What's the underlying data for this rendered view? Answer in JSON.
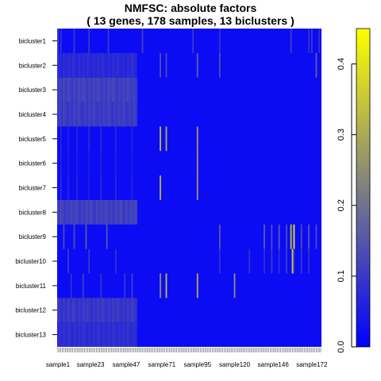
{
  "chart_data": {
    "type": "heatmap",
    "title": "NMFSC: absolute factors",
    "subtitle": "( 13  genes,  178  samples,  13  biclusters )",
    "rows": [
      "bicluster1",
      "bicluster2",
      "bicluster3",
      "bicluster4",
      "bicluster5",
      "bicluster6",
      "bicluster7",
      "bicluster8",
      "bicluster9",
      "bicluster10",
      "bicluster11",
      "bicluster12",
      "bicluster13"
    ],
    "x_tick_labels": [
      "sample1",
      "sample23",
      "sample47",
      "sample71",
      "sample95",
      "sample120",
      "sample146",
      "sample172"
    ],
    "x_tick_samples": [
      1,
      23,
      47,
      71,
      95,
      120,
      146,
      172
    ],
    "n_samples": 178,
    "colorbar": {
      "min": 0.0,
      "max": 0.45,
      "ticks": [
        0.0,
        0.1,
        0.2,
        0.3,
        0.4
      ],
      "tick_labels": [
        "0.0",
        "0.1",
        "0.2",
        "0.3",
        "0.4"
      ],
      "colors": [
        "#0000ff",
        "#808080",
        "#ffff00"
      ]
    },
    "background_value": 0.02,
    "highlights": [
      {
        "row": 1,
        "samples": [
          1,
          3,
          12,
          22,
          35,
          58,
          92,
          110,
          158,
          170,
          172,
          177
        ],
        "value": 0.12
      },
      {
        "row": 2,
        "samples": [
          1,
          2,
          3,
          4,
          5,
          6,
          7,
          8,
          9,
          10,
          11,
          12,
          13,
          14,
          15,
          16,
          17,
          18,
          19,
          20,
          21,
          22,
          23,
          24,
          25,
          26,
          27,
          28,
          29,
          30,
          31,
          32,
          33,
          34,
          35,
          36,
          37,
          38,
          39,
          40,
          41,
          42,
          43,
          44,
          45,
          46,
          47,
          48,
          49,
          50,
          51,
          52,
          53,
          54
        ],
        "value": 0.09
      },
      {
        "row": 2,
        "samples": [
          70,
          74,
          95,
          110,
          175
        ],
        "value": 0.18
      },
      {
        "row": 3,
        "samples": [
          1,
          2,
          3,
          4,
          5,
          6,
          7,
          8,
          9,
          10,
          11,
          12,
          13,
          14,
          15,
          16,
          17,
          18,
          19,
          20,
          21,
          22,
          23,
          24,
          25,
          26,
          27,
          28,
          29,
          30,
          31,
          32,
          33,
          34,
          35,
          36,
          37,
          38,
          39,
          40,
          41,
          42,
          43,
          44,
          45,
          46,
          47,
          48,
          49,
          50,
          51,
          52,
          53,
          54
        ],
        "value": 0.14
      },
      {
        "row": 4,
        "samples": [
          1,
          2,
          3,
          4,
          5,
          6,
          7,
          8,
          9,
          10,
          11,
          12,
          13,
          14,
          15,
          16,
          17,
          18,
          19,
          20,
          21,
          22,
          23,
          24,
          25,
          26,
          27,
          28,
          29,
          30,
          31,
          32,
          33,
          34,
          35,
          36,
          37,
          38,
          39,
          40,
          41,
          42,
          43,
          44,
          45,
          46,
          47,
          48,
          49,
          50,
          51,
          52,
          53,
          54
        ],
        "value": 0.13
      },
      {
        "row": 5,
        "samples": [
          3,
          8,
          14,
          22,
          30,
          40,
          51
        ],
        "value": 0.08
      },
      {
        "row": 5,
        "samples": [
          70,
          74,
          95
        ],
        "value": 0.38
      },
      {
        "row": 6,
        "samples": [
          3,
          8,
          14,
          22,
          30,
          40,
          51
        ],
        "value": 0.07
      },
      {
        "row": 6,
        "samples": [
          95
        ],
        "value": 0.35
      },
      {
        "row": 7,
        "samples": [
          3,
          8,
          14,
          22,
          30,
          40,
          51
        ],
        "value": 0.08
      },
      {
        "row": 7,
        "samples": [
          70,
          95
        ],
        "value": 0.34
      },
      {
        "row": 8,
        "samples": [
          1,
          2,
          3,
          4,
          5,
          6,
          7,
          8,
          9,
          10,
          11,
          12,
          13,
          14,
          15,
          16,
          17,
          18,
          19,
          20,
          21,
          22,
          23,
          24,
          25,
          26,
          27,
          28,
          29,
          30,
          31,
          32,
          33,
          34,
          35,
          36,
          37,
          38,
          39,
          40,
          41,
          42,
          43,
          44,
          45,
          46,
          47,
          48,
          49,
          50,
          51,
          52,
          53,
          54
        ],
        "value": 0.14
      },
      {
        "row": 9,
        "samples": [
          5,
          12,
          20,
          34,
          110,
          140,
          145,
          150,
          155,
          160,
          165,
          170,
          175
        ],
        "value": 0.16
      },
      {
        "row": 9,
        "samples": [
          158,
          160
        ],
        "value": 0.4
      },
      {
        "row": 10,
        "samples": [
          8,
          22,
          40,
          110,
          130,
          140,
          145,
          150,
          155,
          160,
          165,
          170
        ],
        "value": 0.12
      },
      {
        "row": 10,
        "samples": [
          159
        ],
        "value": 0.45
      },
      {
        "row": 11,
        "samples": [
          10,
          18,
          30,
          46,
          51
        ],
        "value": 0.12
      },
      {
        "row": 11,
        "samples": [
          70,
          74,
          95,
          120
        ],
        "value": 0.34
      },
      {
        "row": 12,
        "samples": [
          1,
          2,
          3,
          4,
          5,
          6,
          7,
          8,
          9,
          10,
          11,
          12,
          13,
          14,
          15,
          16,
          17,
          18,
          19,
          20,
          21,
          22,
          23,
          24,
          25,
          26,
          27,
          28,
          29,
          30,
          31,
          32,
          33,
          34,
          35,
          36,
          37,
          38,
          39,
          40,
          41,
          42,
          43,
          44,
          45,
          46,
          47,
          48,
          49,
          50,
          51,
          52,
          53,
          54
        ],
        "value": 0.12
      },
      {
        "row": 13,
        "samples": [
          1,
          2,
          3,
          4,
          5,
          6,
          7,
          8,
          9,
          10,
          11,
          12,
          13,
          14,
          15,
          16,
          17,
          18,
          19,
          20,
          21,
          22,
          23,
          24,
          25,
          26,
          27,
          28,
          29,
          30,
          31,
          32,
          33,
          34,
          35,
          36,
          37,
          38,
          39,
          40,
          41,
          42,
          43,
          44,
          45,
          46,
          47,
          48,
          49,
          50,
          51,
          52,
          53,
          54
        ],
        "value": 0.1
      }
    ]
  }
}
